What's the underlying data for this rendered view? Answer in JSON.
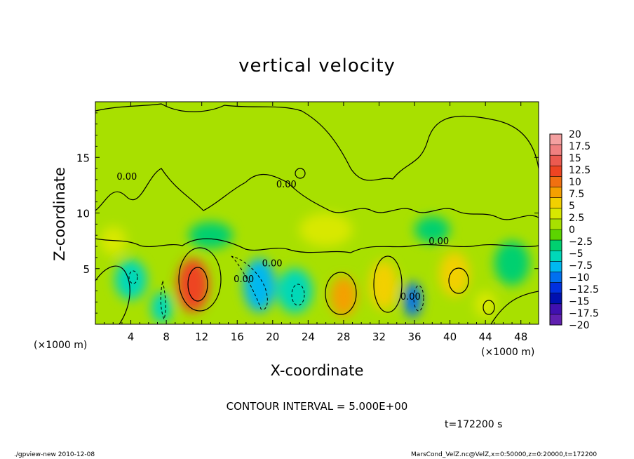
{
  "chart_data": {
    "type": "heatmap",
    "title": "vertical velocity",
    "xlabel": "X-coordinate",
    "ylabel": "Z-coordinate",
    "x_unit_left": "(×1000 m)",
    "x_unit_right": "(×1000 m)",
    "xlim": [
      0,
      50
    ],
    "ylim": [
      0,
      20
    ],
    "x_ticks": [
      4,
      8,
      12,
      16,
      20,
      24,
      28,
      32,
      36,
      40,
      44,
      48
    ],
    "y_ticks": [
      5,
      10,
      15
    ],
    "contour_labels": [
      {
        "text": "0.00",
        "x": 18.8,
        "y": 5.2
      },
      {
        "text": "0.00",
        "x": 15.6,
        "y": 3.8
      },
      {
        "text": "0.00",
        "x": 34.4,
        "y": 2.2
      },
      {
        "text": "0.00",
        "x": 20.4,
        "y": 12.3
      },
      {
        "text": "0.00",
        "x": 37.6,
        "y": 7.2
      },
      {
        "text": "0.00",
        "x": 2.4,
        "y": 13.0
      }
    ],
    "colorbar": {
      "labels": [
        "20",
        "17.5",
        "15",
        "12.5",
        "10",
        "7.5",
        "5",
        "2.5",
        "0",
        "−2.5",
        "−5",
        "−7.5",
        "−10",
        "−12.5",
        "−15",
        "−17.5",
        "−20"
      ],
      "colors": [
        "#f4a0a0",
        "#f08080",
        "#ec5a50",
        "#ee4422",
        "#f07010",
        "#f4a000",
        "#f2d000",
        "#d8e800",
        "#a8e000",
        "#5cd400",
        "#00d070",
        "#00d8b8",
        "#00b8f0",
        "#0070f0",
        "#0030e0",
        "#0010b0",
        "#4010b0",
        "#6020b0"
      ],
      "range": [
        -20,
        20
      ]
    },
    "color_fields": [
      {
        "x": 11,
        "y": 3.5,
        "value": 12,
        "sx": 1.8,
        "sy": 2.4
      },
      {
        "x": 28,
        "y": 2.5,
        "value": 9,
        "sx": 1.5,
        "sy": 1.8
      },
      {
        "x": 32.5,
        "y": 3.5,
        "value": 6,
        "sx": 1.6,
        "sy": 2.2
      },
      {
        "x": 40.5,
        "y": 4.5,
        "value": 6,
        "sx": 1.7,
        "sy": 2.0
      },
      {
        "x": 44,
        "y": 1.8,
        "value": 4,
        "sx": 1.2,
        "sy": 1.2
      },
      {
        "x": 18.5,
        "y": 3.5,
        "value": -9,
        "sx": 1.8,
        "sy": 2.4
      },
      {
        "x": 35.8,
        "y": 2.2,
        "value": -10,
        "sx": 1.0,
        "sy": 1.6
      },
      {
        "x": 4,
        "y": 4.0,
        "value": -5,
        "sx": 1.8,
        "sy": 1.8
      },
      {
        "x": 22.5,
        "y": 3.0,
        "value": -5,
        "sx": 2.0,
        "sy": 2.0
      },
      {
        "x": 7.5,
        "y": 1.5,
        "value": -5,
        "sx": 1.2,
        "sy": 1.4
      },
      {
        "x": 47,
        "y": 5.5,
        "value": -4,
        "sx": 2.0,
        "sy": 2.0
      },
      {
        "x": 2,
        "y": 7.5,
        "value": 4,
        "sx": 1.5,
        "sy": 1.3
      },
      {
        "x": 13,
        "y": 8.0,
        "value": -3,
        "sx": 2.5,
        "sy": 1.2
      },
      {
        "x": 26,
        "y": 8.5,
        "value": 3,
        "sx": 3.0,
        "sy": 1.5
      },
      {
        "x": 38,
        "y": 8.5,
        "value": -3,
        "sx": 2.0,
        "sy": 1.2
      }
    ],
    "contour_interval_text": "CONTOUR INTERVAL = 5.000E+00",
    "time_text": "t=172200 s"
  },
  "footer": {
    "left": "./gpview-new   2010-12-08",
    "right": "MarsCond_VelZ.nc@VelZ,x=0:50000,z=0:20000,t=172200"
  },
  "colors": {
    "background": "#ffffff",
    "axis": "#000000",
    "contour": "#000000"
  }
}
